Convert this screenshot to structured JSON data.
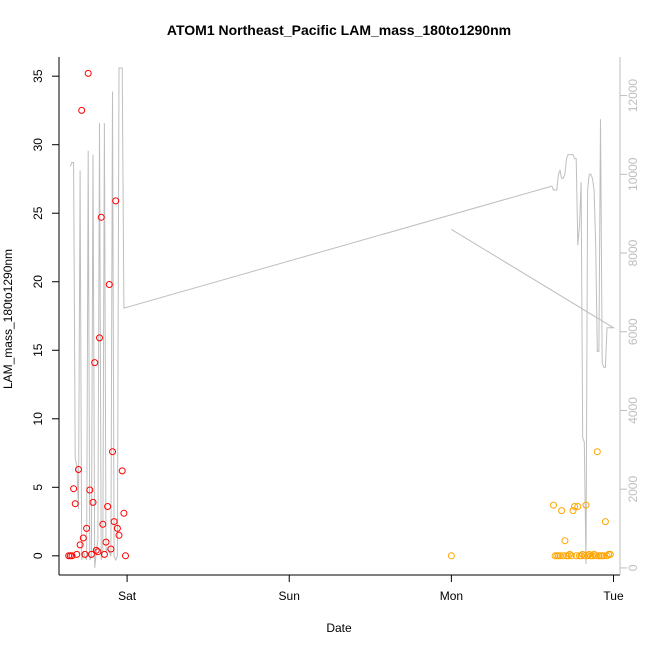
{
  "chart_data": {
    "type": "scatter",
    "title": "ATOM1 Northeast_Pacific LAM_mass_180to1290nm",
    "xlabel": "Date",
    "ylabel": "LAM_mass_180to1290nm",
    "x_ticks": [
      "Sat",
      "Sun",
      "Mon",
      "Tue"
    ],
    "y_ticks": [
      "0",
      "5",
      "10",
      "15",
      "20",
      "25",
      "30",
      "35"
    ],
    "y_right_ticks": [
      "0",
      "2000",
      "4000",
      "6000",
      "8000",
      "10000",
      "12000"
    ],
    "x_range_days": [
      -0.42,
      3.04
    ],
    "y_range": [
      -1.4,
      36.4
    ],
    "y_right_range": [
      -180,
      12980
    ],
    "grid": false,
    "colors": {
      "early": "#ff0000",
      "late": "#ffa500",
      "line": "#bebebe",
      "axis": "#000000",
      "right_axis": "#bebebe"
    },
    "series": [
      {
        "values": [
          [
            -0.36,
            0
          ],
          [
            -0.35,
            0
          ],
          [
            -0.34,
            0
          ],
          [
            -0.33,
            4.9
          ],
          [
            -0.32,
            3.8
          ],
          [
            -0.31,
            0.1
          ],
          [
            -0.3,
            6.3
          ],
          [
            -0.29,
            0.8
          ],
          [
            -0.28,
            32.5
          ],
          [
            -0.27,
            1.3
          ],
          [
            -0.26,
            0.1
          ],
          [
            -0.25,
            2.0
          ],
          [
            -0.24,
            35.2
          ],
          [
            -0.23,
            4.8
          ],
          [
            -0.22,
            0.1
          ],
          [
            -0.21,
            3.9
          ],
          [
            -0.2,
            14.1
          ],
          [
            -0.19,
            0.4
          ],
          [
            -0.18,
            0.3
          ],
          [
            -0.17,
            15.9
          ],
          [
            -0.16,
            24.7
          ],
          [
            -0.15,
            2.3
          ],
          [
            -0.14,
            0.1
          ],
          [
            -0.13,
            1.0
          ],
          [
            -0.12,
            3.6
          ],
          [
            -0.11,
            19.8
          ],
          [
            -0.1,
            0.5
          ],
          [
            -0.09,
            7.6
          ],
          [
            -0.08,
            2.5
          ],
          [
            -0.07,
            25.9
          ],
          [
            -0.06,
            2.0
          ],
          [
            -0.05,
            1.5
          ],
          [
            -0.03,
            6.2
          ],
          [
            -0.02,
            3.1
          ],
          [
            -0.01,
            0
          ]
        ]
      },
      {
        "values": [
          [
            2.0,
            0
          ],
          [
            2.63,
            3.7
          ],
          [
            2.64,
            0
          ],
          [
            2.65,
            0
          ],
          [
            2.66,
            0
          ],
          [
            2.67,
            0
          ],
          [
            2.68,
            3.3
          ],
          [
            2.69,
            0
          ],
          [
            2.7,
            1.1
          ],
          [
            2.71,
            0
          ],
          [
            2.72,
            0
          ],
          [
            2.73,
            0.1
          ],
          [
            2.74,
            0
          ],
          [
            2.75,
            3.3
          ],
          [
            2.76,
            3.6
          ],
          [
            2.77,
            0
          ],
          [
            2.78,
            3.6
          ],
          [
            2.79,
            0
          ],
          [
            2.8,
            0
          ],
          [
            2.81,
            0.1
          ],
          [
            2.82,
            0
          ],
          [
            2.83,
            3.7
          ],
          [
            2.84,
            0
          ],
          [
            2.85,
            0.1
          ],
          [
            2.86,
            0
          ],
          [
            2.87,
            0
          ],
          [
            2.88,
            0.1
          ],
          [
            2.89,
            0
          ],
          [
            2.9,
            7.6
          ],
          [
            2.91,
            0
          ],
          [
            2.92,
            0
          ],
          [
            2.93,
            0
          ],
          [
            2.94,
            0
          ],
          [
            2.95,
            2.5
          ],
          [
            2.96,
            0
          ],
          [
            2.97,
            0.1
          ],
          [
            2.98,
            0.1
          ]
        ]
      },
      {
        "values": [
          [
            -0.35,
            10200
          ],
          [
            -0.34,
            10300
          ],
          [
            -0.33,
            10300
          ],
          [
            -0.32,
            2800
          ],
          [
            -0.31,
            2600
          ],
          [
            -0.3,
            1500
          ],
          [
            -0.29,
            10100
          ],
          [
            -0.28,
            200
          ],
          [
            -0.27,
            400
          ],
          [
            -0.26,
            300
          ],
          [
            -0.25,
            200
          ],
          [
            -0.24,
            10600
          ],
          [
            -0.23,
            200
          ],
          [
            -0.22,
            300
          ],
          [
            -0.21,
            10500
          ],
          [
            -0.2,
            0
          ],
          [
            -0.19,
            400
          ],
          [
            -0.18,
            700
          ],
          [
            -0.17,
            11300
          ],
          [
            -0.16,
            200
          ],
          [
            -0.15,
            400
          ],
          [
            -0.14,
            11300
          ],
          [
            -0.13,
            400
          ],
          [
            -0.12,
            500
          ],
          [
            -0.11,
            400
          ],
          [
            -0.1,
            300
          ],
          [
            -0.09,
            12100
          ],
          [
            -0.08,
            300
          ],
          [
            -0.07,
            200
          ],
          [
            -0.06,
            300
          ],
          [
            -0.05,
            12700
          ],
          [
            -0.04,
            12700
          ],
          [
            -0.03,
            12700
          ],
          [
            -0.02,
            6600
          ],
          [
            2.62,
            9700
          ],
          [
            2.63,
            9600
          ],
          [
            2.64,
            9600
          ],
          [
            2.65,
            9600
          ],
          [
            2.66,
            10000
          ],
          [
            2.67,
            10100
          ],
          [
            2.68,
            9900
          ],
          [
            2.69,
            9900
          ],
          [
            2.7,
            10000
          ],
          [
            2.71,
            10400
          ],
          [
            2.72,
            10500
          ],
          [
            2.73,
            10500
          ],
          [
            2.74,
            10500
          ],
          [
            2.75,
            10500
          ],
          [
            2.76,
            10400
          ],
          [
            2.77,
            10400
          ],
          [
            2.78,
            8200
          ],
          [
            2.79,
            8700
          ],
          [
            2.8,
            9800
          ],
          [
            2.81,
            3300
          ],
          [
            2.82,
            3200
          ],
          [
            2.83,
            100
          ],
          [
            2.84,
            9600
          ],
          [
            2.85,
            10000
          ],
          [
            2.86,
            10000
          ],
          [
            2.87,
            9900
          ],
          [
            2.88,
            9600
          ],
          [
            2.89,
            8200
          ],
          [
            2.9,
            5500
          ],
          [
            2.91,
            5500
          ],
          [
            2.92,
            11400
          ],
          [
            2.93,
            5200
          ],
          [
            2.94,
            5100
          ],
          [
            2.95,
            5100
          ],
          [
            2.96,
            6100
          ],
          [
            2.97,
            6100
          ],
          [
            2.98,
            6100
          ],
          [
            2.99,
            6100
          ],
          [
            3.0,
            6100
          ],
          [
            2.0,
            8600
          ]
        ]
      }
    ]
  }
}
